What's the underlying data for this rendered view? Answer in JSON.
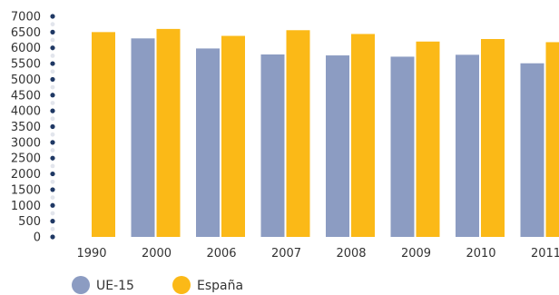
{
  "chart_data": {
    "type": "bar",
    "categories": [
      "1990",
      "2000",
      "2006",
      "2007",
      "2008",
      "2009",
      "2010",
      "2011"
    ],
    "series": [
      {
        "name": "UE-15",
        "values": [
          null,
          6300,
          5980,
          5790,
          5760,
          5720,
          5780,
          5510
        ],
        "color": "#8c9cc2"
      },
      {
        "name": "España",
        "values": [
          6500,
          6600,
          6380,
          6560,
          6440,
          6200,
          6280,
          6180
        ],
        "color": "#fbb917"
      }
    ],
    "yticks": [
      "0",
      "500",
      "1000",
      "1500",
      "2000",
      "2500",
      "3000",
      "3500",
      "4000",
      "4500",
      "5000",
      "5500",
      "6000",
      "6500",
      "7000"
    ],
    "ylim": [
      0,
      7000
    ],
    "legend_position": "bottom-left",
    "axis_marker_color": "#1f3864"
  }
}
